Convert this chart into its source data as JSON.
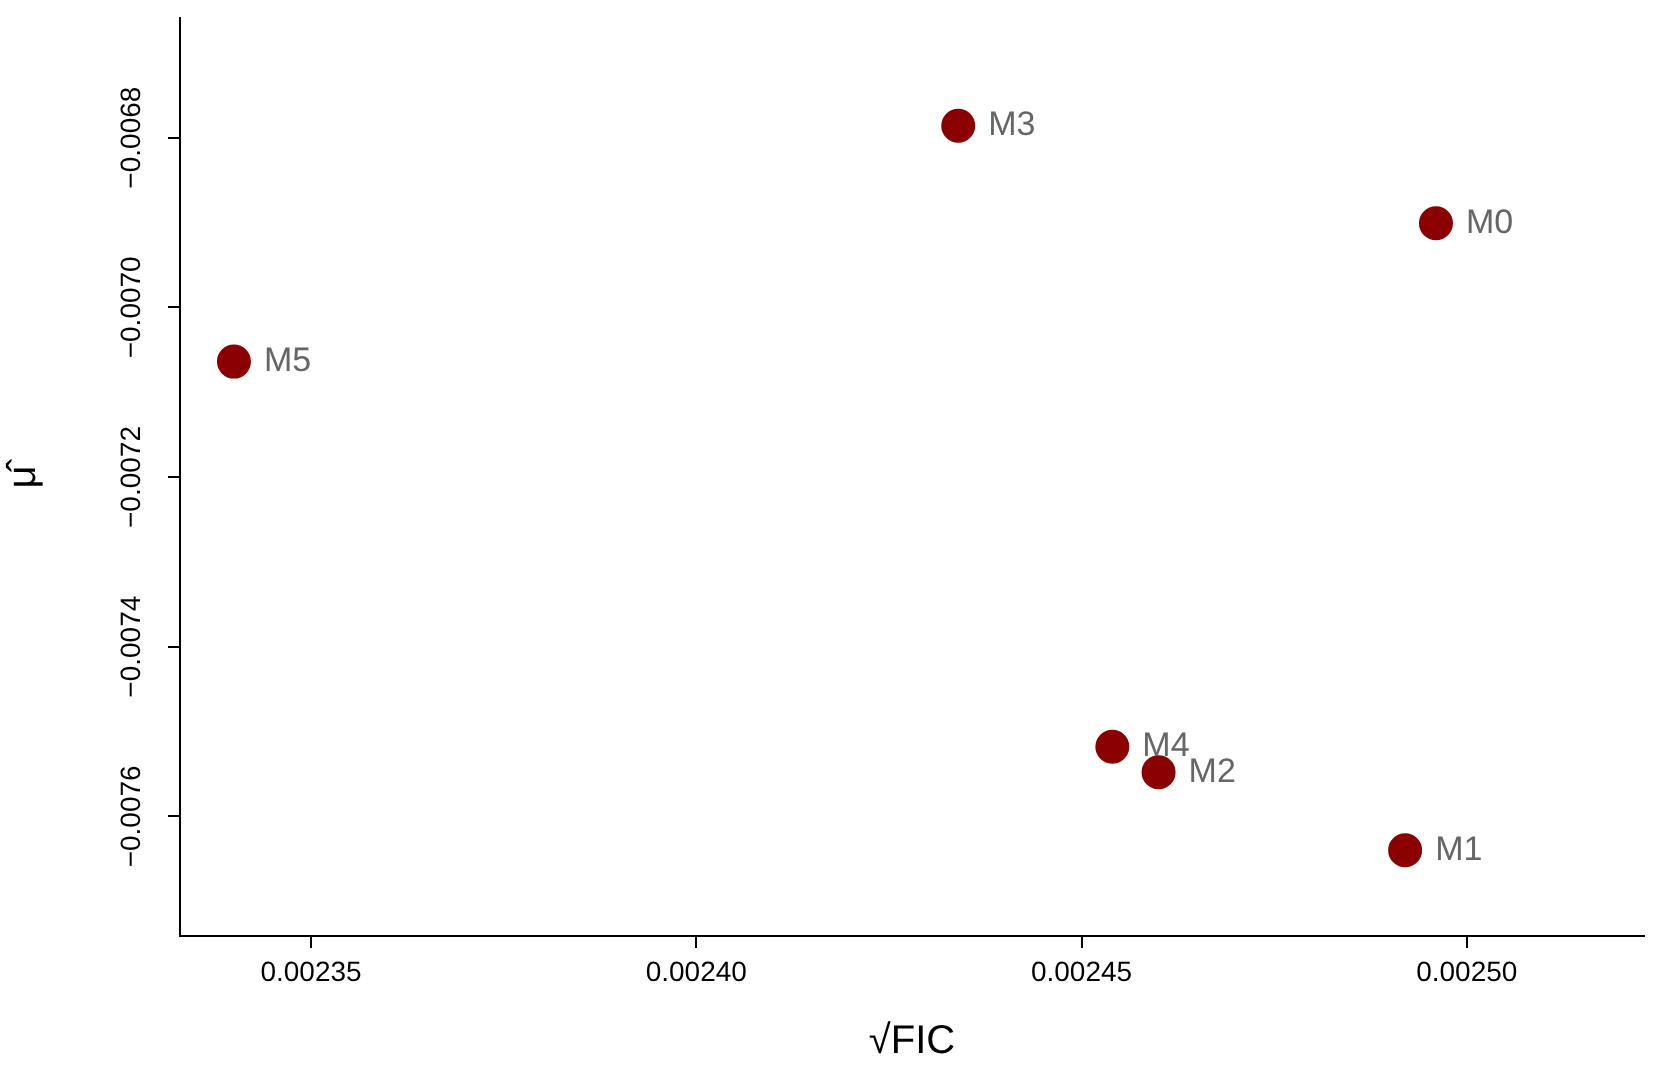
{
  "chart_data": {
    "type": "scatter",
    "xlabel": "√FIC",
    "ylabel": "μ̂",
    "x": [
      0.002496,
      0.002492,
      0.00246,
      0.002434,
      0.002454,
      0.00234
    ],
    "series": [
      {
        "color": "#8b0000",
        "values": [
          -0.006901,
          -0.00764,
          -0.007548,
          -0.006786,
          -0.007518,
          -0.007064
        ]
      }
    ],
    "annotations": [
      {
        "text": "M0",
        "x": 0.002496,
        "y": -0.006901
      },
      {
        "text": "M1",
        "x": 0.002492,
        "y": -0.00764
      },
      {
        "text": "M2",
        "x": 0.00246,
        "y": -0.007548
      },
      {
        "text": "M3",
        "x": 0.002434,
        "y": -0.006786
      },
      {
        "text": "M4",
        "x": 0.002454,
        "y": -0.007518
      },
      {
        "text": "M5",
        "x": 0.00234,
        "y": -0.007064
      }
    ],
    "xlim": [
      0.002333,
      0.002523
    ],
    "xticks": [
      0.00235,
      {
        "value": 0.0024,
        "label": "0.00240"
      },
      0.00245,
      {
        "value": 0.0025,
        "label": "0.00250"
      }
    ],
    "ylim": [
      -0.007741,
      -0.006659
    ],
    "yticks": [
      {
        "value": -0.0068,
        "label": "−0.0068"
      },
      {
        "value": -0.007,
        "label": "−0.0070"
      },
      {
        "value": -0.0072,
        "label": "−0.0072"
      },
      {
        "value": -0.0074,
        "label": "−0.0074"
      },
      {
        "value": -0.0076,
        "label": "−0.0076"
      }
    ],
    "grid": false,
    "legend": false,
    "marker": "circle"
  }
}
